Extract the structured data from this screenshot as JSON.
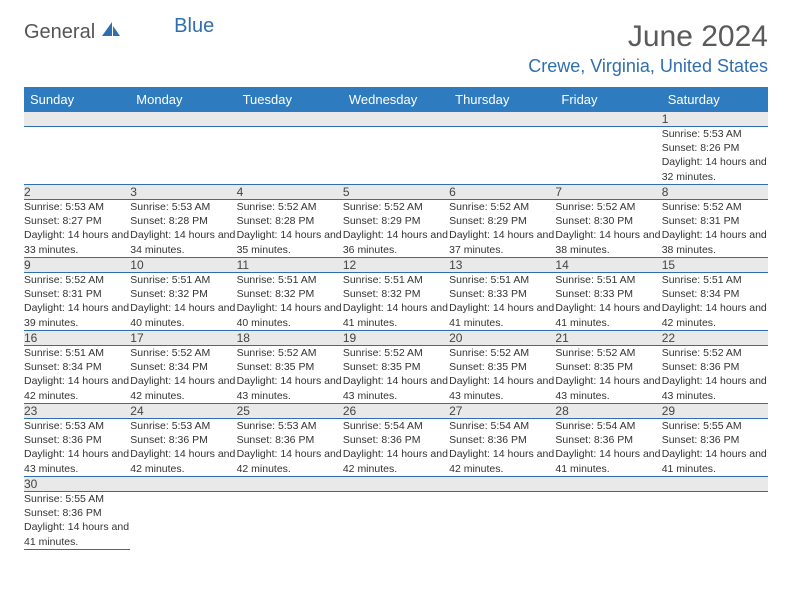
{
  "logo": {
    "general": "General",
    "blue": "Blue"
  },
  "title": "June 2024",
  "location": "Crewe, Virginia, United States",
  "colors": {
    "header_bg": "#2f7bbf",
    "header_text": "#ffffff",
    "accent": "#2f6fb0",
    "daynum_bg": "#e9e9e9",
    "text": "#333333",
    "title_text": "#5a5a5a"
  },
  "typography": {
    "title_fontsize": 30,
    "location_fontsize": 18,
    "weekday_fontsize": 13,
    "daynum_fontsize": 12,
    "cell_fontsize": 10.5
  },
  "weekdays": [
    "Sunday",
    "Monday",
    "Tuesday",
    "Wednesday",
    "Thursday",
    "Friday",
    "Saturday"
  ],
  "weeks": [
    [
      null,
      null,
      null,
      null,
      null,
      null,
      {
        "n": "1",
        "sunrise": "Sunrise: 5:53 AM",
        "sunset": "Sunset: 8:26 PM",
        "day": "Daylight: 14 hours and 32 minutes."
      }
    ],
    [
      {
        "n": "2",
        "sunrise": "Sunrise: 5:53 AM",
        "sunset": "Sunset: 8:27 PM",
        "day": "Daylight: 14 hours and 33 minutes."
      },
      {
        "n": "3",
        "sunrise": "Sunrise: 5:53 AM",
        "sunset": "Sunset: 8:28 PM",
        "day": "Daylight: 14 hours and 34 minutes."
      },
      {
        "n": "4",
        "sunrise": "Sunrise: 5:52 AM",
        "sunset": "Sunset: 8:28 PM",
        "day": "Daylight: 14 hours and 35 minutes."
      },
      {
        "n": "5",
        "sunrise": "Sunrise: 5:52 AM",
        "sunset": "Sunset: 8:29 PM",
        "day": "Daylight: 14 hours and 36 minutes."
      },
      {
        "n": "6",
        "sunrise": "Sunrise: 5:52 AM",
        "sunset": "Sunset: 8:29 PM",
        "day": "Daylight: 14 hours and 37 minutes."
      },
      {
        "n": "7",
        "sunrise": "Sunrise: 5:52 AM",
        "sunset": "Sunset: 8:30 PM",
        "day": "Daylight: 14 hours and 38 minutes."
      },
      {
        "n": "8",
        "sunrise": "Sunrise: 5:52 AM",
        "sunset": "Sunset: 8:31 PM",
        "day": "Daylight: 14 hours and 38 minutes."
      }
    ],
    [
      {
        "n": "9",
        "sunrise": "Sunrise: 5:52 AM",
        "sunset": "Sunset: 8:31 PM",
        "day": "Daylight: 14 hours and 39 minutes."
      },
      {
        "n": "10",
        "sunrise": "Sunrise: 5:51 AM",
        "sunset": "Sunset: 8:32 PM",
        "day": "Daylight: 14 hours and 40 minutes."
      },
      {
        "n": "11",
        "sunrise": "Sunrise: 5:51 AM",
        "sunset": "Sunset: 8:32 PM",
        "day": "Daylight: 14 hours and 40 minutes."
      },
      {
        "n": "12",
        "sunrise": "Sunrise: 5:51 AM",
        "sunset": "Sunset: 8:32 PM",
        "day": "Daylight: 14 hours and 41 minutes."
      },
      {
        "n": "13",
        "sunrise": "Sunrise: 5:51 AM",
        "sunset": "Sunset: 8:33 PM",
        "day": "Daylight: 14 hours and 41 minutes."
      },
      {
        "n": "14",
        "sunrise": "Sunrise: 5:51 AM",
        "sunset": "Sunset: 8:33 PM",
        "day": "Daylight: 14 hours and 41 minutes."
      },
      {
        "n": "15",
        "sunrise": "Sunrise: 5:51 AM",
        "sunset": "Sunset: 8:34 PM",
        "day": "Daylight: 14 hours and 42 minutes."
      }
    ],
    [
      {
        "n": "16",
        "sunrise": "Sunrise: 5:51 AM",
        "sunset": "Sunset: 8:34 PM",
        "day": "Daylight: 14 hours and 42 minutes."
      },
      {
        "n": "17",
        "sunrise": "Sunrise: 5:52 AM",
        "sunset": "Sunset: 8:34 PM",
        "day": "Daylight: 14 hours and 42 minutes."
      },
      {
        "n": "18",
        "sunrise": "Sunrise: 5:52 AM",
        "sunset": "Sunset: 8:35 PM",
        "day": "Daylight: 14 hours and 43 minutes."
      },
      {
        "n": "19",
        "sunrise": "Sunrise: 5:52 AM",
        "sunset": "Sunset: 8:35 PM",
        "day": "Daylight: 14 hours and 43 minutes."
      },
      {
        "n": "20",
        "sunrise": "Sunrise: 5:52 AM",
        "sunset": "Sunset: 8:35 PM",
        "day": "Daylight: 14 hours and 43 minutes."
      },
      {
        "n": "21",
        "sunrise": "Sunrise: 5:52 AM",
        "sunset": "Sunset: 8:35 PM",
        "day": "Daylight: 14 hours and 43 minutes."
      },
      {
        "n": "22",
        "sunrise": "Sunrise: 5:52 AM",
        "sunset": "Sunset: 8:36 PM",
        "day": "Daylight: 14 hours and 43 minutes."
      }
    ],
    [
      {
        "n": "23",
        "sunrise": "Sunrise: 5:53 AM",
        "sunset": "Sunset: 8:36 PM",
        "day": "Daylight: 14 hours and 43 minutes."
      },
      {
        "n": "24",
        "sunrise": "Sunrise: 5:53 AM",
        "sunset": "Sunset: 8:36 PM",
        "day": "Daylight: 14 hours and 42 minutes."
      },
      {
        "n": "25",
        "sunrise": "Sunrise: 5:53 AM",
        "sunset": "Sunset: 8:36 PM",
        "day": "Daylight: 14 hours and 42 minutes."
      },
      {
        "n": "26",
        "sunrise": "Sunrise: 5:54 AM",
        "sunset": "Sunset: 8:36 PM",
        "day": "Daylight: 14 hours and 42 minutes."
      },
      {
        "n": "27",
        "sunrise": "Sunrise: 5:54 AM",
        "sunset": "Sunset: 8:36 PM",
        "day": "Daylight: 14 hours and 42 minutes."
      },
      {
        "n": "28",
        "sunrise": "Sunrise: 5:54 AM",
        "sunset": "Sunset: 8:36 PM",
        "day": "Daylight: 14 hours and 41 minutes."
      },
      {
        "n": "29",
        "sunrise": "Sunrise: 5:55 AM",
        "sunset": "Sunset: 8:36 PM",
        "day": "Daylight: 14 hours and 41 minutes."
      }
    ],
    [
      {
        "n": "30",
        "sunrise": "Sunrise: 5:55 AM",
        "sunset": "Sunset: 8:36 PM",
        "day": "Daylight: 14 hours and 41 minutes."
      },
      null,
      null,
      null,
      null,
      null,
      null
    ]
  ]
}
